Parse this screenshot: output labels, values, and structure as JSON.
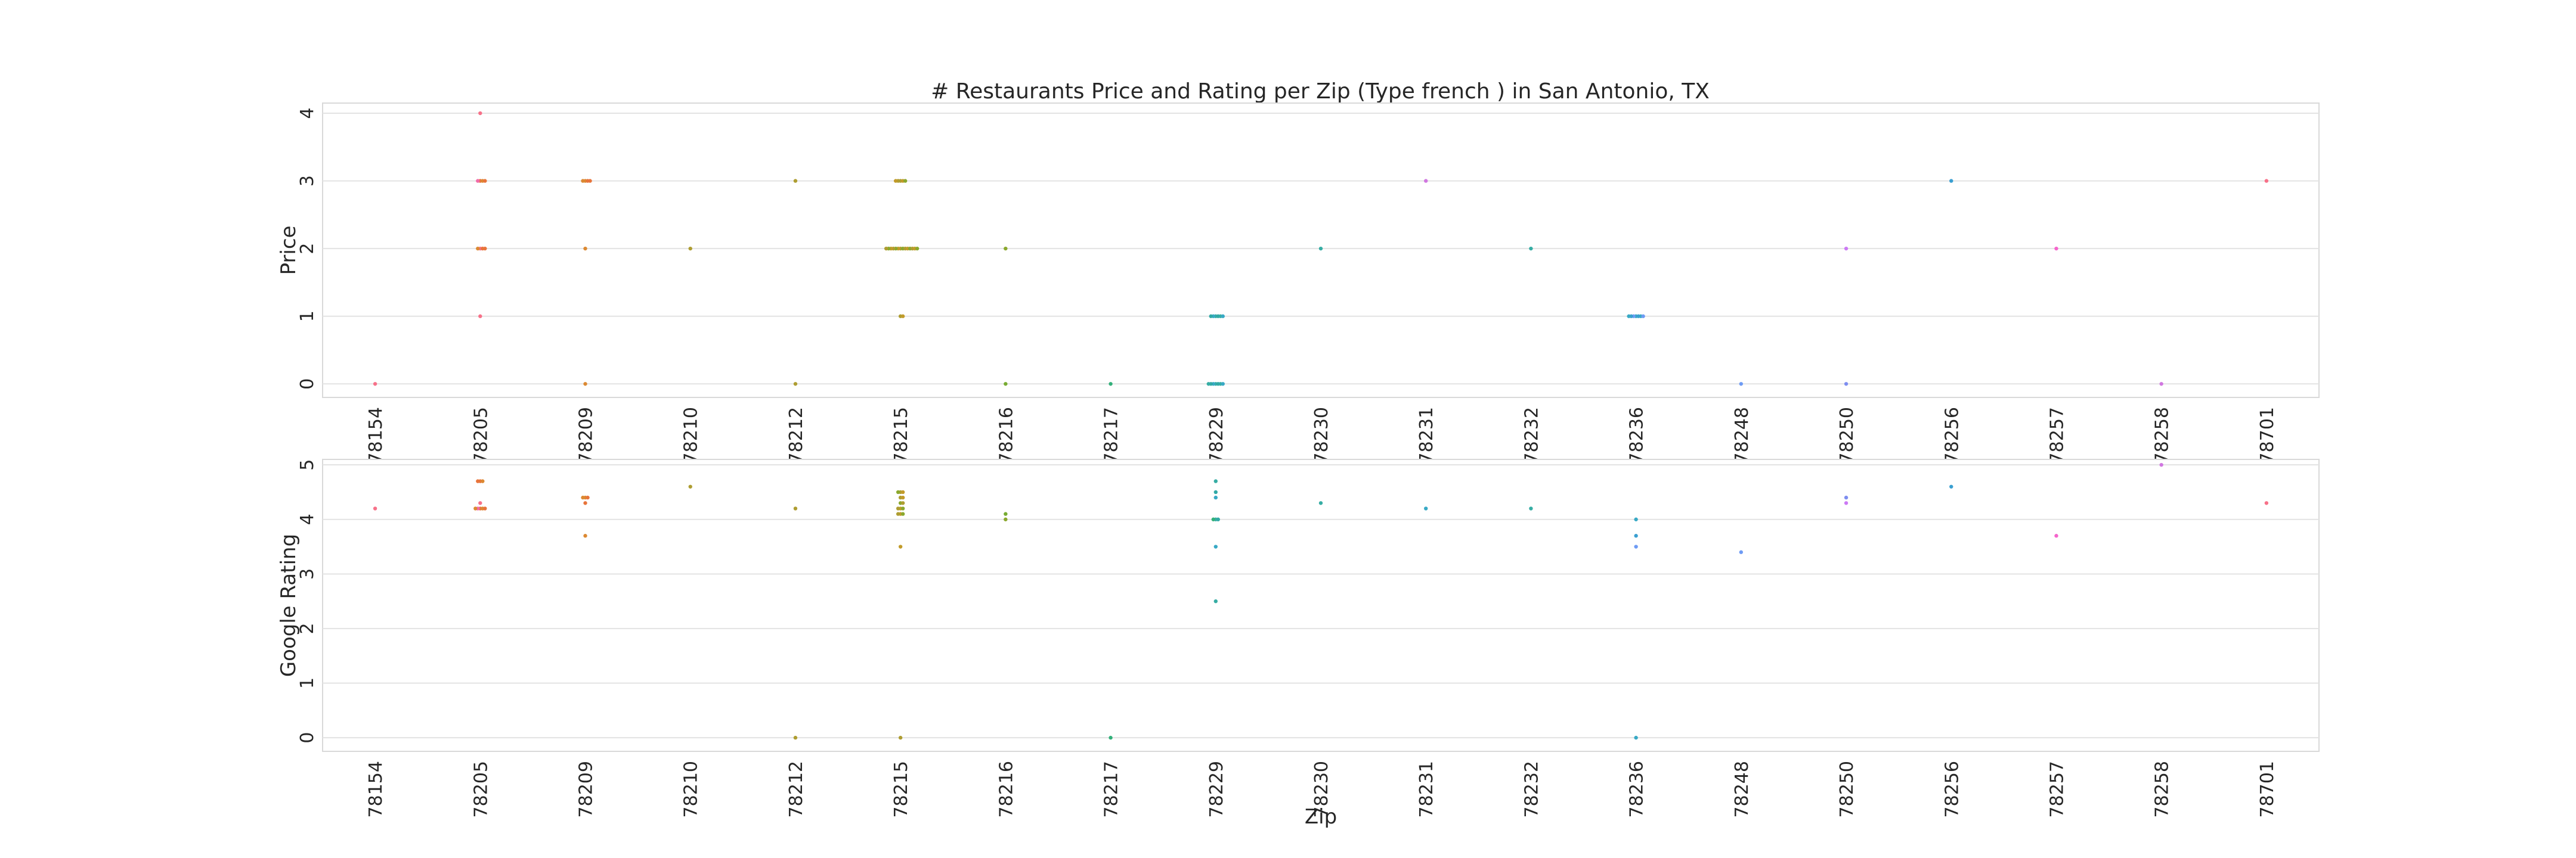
{
  "chart_data": {
    "type": "scatter",
    "title": "# Restaurants Price and Rating per Zip (Type french ) in San Antonio, TX",
    "categories": [
      "78154",
      "78205",
      "78209",
      "78210",
      "78212",
      "78215",
      "78216",
      "78217",
      "78229",
      "78230",
      "78231",
      "78232",
      "78236",
      "78248",
      "78250",
      "78256",
      "78257",
      "78258",
      "78701"
    ],
    "colors": [
      "#f77189",
      "#dc8932",
      "#ae9d31",
      "#77ab31",
      "#33b07a",
      "#36ada4",
      "#38a9c5",
      "#6e9bf4",
      "#cc7af4",
      "#f565cc",
      "#e8743b",
      "#c29b2a",
      "#8aa82d",
      "#4aa96f",
      "#30a9a6",
      "#3a9fd1",
      "#7e8ef0",
      "#d077e0",
      "#f26aa8"
    ],
    "grid": true,
    "panels": [
      {
        "ylabel": "Price",
        "xlabel": "",
        "ylim": [
          -0.2,
          4.15
        ],
        "yticks": [
          "0",
          "1",
          "2",
          "3",
          "4"
        ],
        "points": [
          {
            "cat": "78154",
            "y": 0,
            "color": "#f77189"
          },
          {
            "cat": "78205",
            "y": 4,
            "color": "#f77189"
          },
          {
            "cat": "78205",
            "y": 3,
            "color": "#e8743b"
          },
          {
            "cat": "78205",
            "y": 3,
            "color": "#dc8932"
          },
          {
            "cat": "78205",
            "y": 3,
            "color": "#f26aa8"
          },
          {
            "cat": "78205",
            "y": 3,
            "color": "#e8743b"
          },
          {
            "cat": "78205",
            "y": 2,
            "color": "#f77189"
          },
          {
            "cat": "78205",
            "y": 2,
            "color": "#e8743b"
          },
          {
            "cat": "78205",
            "y": 2,
            "color": "#dc8932"
          },
          {
            "cat": "78205",
            "y": 2,
            "color": "#e8743b"
          },
          {
            "cat": "78205",
            "y": 1,
            "color": "#f77189"
          },
          {
            "cat": "78209",
            "y": 3,
            "color": "#dc8932"
          },
          {
            "cat": "78209",
            "y": 3,
            "color": "#e8743b"
          },
          {
            "cat": "78209",
            "y": 3,
            "color": "#dc8932"
          },
          {
            "cat": "78209",
            "y": 3,
            "color": "#e8743b"
          },
          {
            "cat": "78209",
            "y": 2,
            "color": "#dc8932"
          },
          {
            "cat": "78209",
            "y": 0,
            "color": "#dc8932"
          },
          {
            "cat": "78210",
            "y": 2,
            "color": "#ae9d31"
          },
          {
            "cat": "78212",
            "y": 3,
            "color": "#ae9d31"
          },
          {
            "cat": "78212",
            "y": 0,
            "color": "#ae9d31"
          },
          {
            "cat": "78215",
            "y": 3,
            "color": "#ae9d31"
          },
          {
            "cat": "78215",
            "y": 3,
            "color": "#c29b2a"
          },
          {
            "cat": "78215",
            "y": 3,
            "color": "#ae9d31"
          },
          {
            "cat": "78215",
            "y": 3,
            "color": "#8aa82d"
          },
          {
            "cat": "78215",
            "y": 3,
            "color": "#c29b2a"
          },
          {
            "cat": "78215",
            "y": 2,
            "color": "#ae9d31"
          },
          {
            "cat": "78215",
            "y": 2,
            "color": "#8aa82d"
          },
          {
            "cat": "78215",
            "y": 2,
            "color": "#c29b2a"
          },
          {
            "cat": "78215",
            "y": 2,
            "color": "#ae9d31"
          },
          {
            "cat": "78215",
            "y": 2,
            "color": "#8aa82d"
          },
          {
            "cat": "78215",
            "y": 2,
            "color": "#c29b2a"
          },
          {
            "cat": "78215",
            "y": 2,
            "color": "#ae9d31"
          },
          {
            "cat": "78215",
            "y": 2,
            "color": "#8aa82d"
          },
          {
            "cat": "78215",
            "y": 2,
            "color": "#c29b2a"
          },
          {
            "cat": "78215",
            "y": 2,
            "color": "#ae9d31"
          },
          {
            "cat": "78215",
            "y": 2,
            "color": "#8aa82d"
          },
          {
            "cat": "78215",
            "y": 2,
            "color": "#c29b2a"
          },
          {
            "cat": "78215",
            "y": 2,
            "color": "#ae9d31"
          },
          {
            "cat": "78215",
            "y": 2,
            "color": "#8aa82d"
          },
          {
            "cat": "78215",
            "y": 1,
            "color": "#ae9d31"
          },
          {
            "cat": "78215",
            "y": 1,
            "color": "#c29b2a"
          },
          {
            "cat": "78216",
            "y": 2,
            "color": "#8aa82d"
          },
          {
            "cat": "78216",
            "y": 0,
            "color": "#77ab31"
          },
          {
            "cat": "78217",
            "y": 0,
            "color": "#33b07a"
          },
          {
            "cat": "78229",
            "y": 1,
            "color": "#36ada4"
          },
          {
            "cat": "78229",
            "y": 1,
            "color": "#30a9a6"
          },
          {
            "cat": "78229",
            "y": 1,
            "color": "#38a9c5"
          },
          {
            "cat": "78229",
            "y": 1,
            "color": "#36ada4"
          },
          {
            "cat": "78229",
            "y": 1,
            "color": "#30a9a6"
          },
          {
            "cat": "78229",
            "y": 1,
            "color": "#38a9c5"
          },
          {
            "cat": "78229",
            "y": 0,
            "color": "#36ada4"
          },
          {
            "cat": "78229",
            "y": 0,
            "color": "#30a9a6"
          },
          {
            "cat": "78229",
            "y": 0,
            "color": "#38a9c5"
          },
          {
            "cat": "78229",
            "y": 0,
            "color": "#36ada4"
          },
          {
            "cat": "78229",
            "y": 0,
            "color": "#30a9a6"
          },
          {
            "cat": "78229",
            "y": 0,
            "color": "#38a9c5"
          },
          {
            "cat": "78229",
            "y": 0,
            "color": "#36ada4"
          },
          {
            "cat": "78230",
            "y": 2,
            "color": "#36ada4"
          },
          {
            "cat": "78231",
            "y": 3,
            "color": "#d077e0"
          },
          {
            "cat": "78232",
            "y": 2,
            "color": "#36ada4"
          },
          {
            "cat": "78236",
            "y": 1,
            "color": "#38a9c5"
          },
          {
            "cat": "78236",
            "y": 1,
            "color": "#3a9fd1"
          },
          {
            "cat": "78236",
            "y": 1,
            "color": "#6e9bf4"
          },
          {
            "cat": "78236",
            "y": 1,
            "color": "#38a9c5"
          },
          {
            "cat": "78236",
            "y": 1,
            "color": "#3a9fd1"
          },
          {
            "cat": "78236",
            "y": 1,
            "color": "#6e9bf4"
          },
          {
            "cat": "78236",
            "y": 1,
            "color": "#38a9c5"
          },
          {
            "cat": "78248",
            "y": 0,
            "color": "#6e9bf4"
          },
          {
            "cat": "78250",
            "y": 2,
            "color": "#cc7af4"
          },
          {
            "cat": "78250",
            "y": 0,
            "color": "#7e8ef0"
          },
          {
            "cat": "78256",
            "y": 3,
            "color": "#3a9fd1"
          },
          {
            "cat": "78257",
            "y": 2,
            "color": "#f565cc"
          },
          {
            "cat": "78258",
            "y": 0,
            "color": "#d077e0"
          },
          {
            "cat": "78701",
            "y": 3,
            "color": "#f77189"
          }
        ]
      },
      {
        "ylabel": "Google Rating",
        "xlabel": "Zip",
        "ylim": [
          -0.25,
          5.1
        ],
        "yticks": [
          "0",
          "1",
          "2",
          "3",
          "4",
          "5"
        ],
        "points": [
          {
            "cat": "78154",
            "y": 4.2,
            "color": "#f77189"
          },
          {
            "cat": "78205",
            "y": 4.7,
            "color": "#e8743b"
          },
          {
            "cat": "78205",
            "y": 4.7,
            "color": "#dc8932"
          },
          {
            "cat": "78205",
            "y": 4.7,
            "color": "#e8743b"
          },
          {
            "cat": "78205",
            "y": 4.3,
            "color": "#f77189"
          },
          {
            "cat": "78205",
            "y": 4.2,
            "color": "#e8743b"
          },
          {
            "cat": "78205",
            "y": 4.2,
            "color": "#dc8932"
          },
          {
            "cat": "78205",
            "y": 4.2,
            "color": "#f26aa8"
          },
          {
            "cat": "78205",
            "y": 4.2,
            "color": "#e8743b"
          },
          {
            "cat": "78205",
            "y": 4.2,
            "color": "#dc8932"
          },
          {
            "cat": "78209",
            "y": 4.4,
            "color": "#dc8932"
          },
          {
            "cat": "78209",
            "y": 4.4,
            "color": "#e8743b"
          },
          {
            "cat": "78209",
            "y": 4.4,
            "color": "#dc8932"
          },
          {
            "cat": "78209",
            "y": 4.3,
            "color": "#e8743b"
          },
          {
            "cat": "78209",
            "y": 3.7,
            "color": "#dc8932"
          },
          {
            "cat": "78210",
            "y": 4.6,
            "color": "#ae9d31"
          },
          {
            "cat": "78212",
            "y": 4.2,
            "color": "#ae9d31"
          },
          {
            "cat": "78212",
            "y": 0,
            "color": "#ae9d31"
          },
          {
            "cat": "78215",
            "y": 4.5,
            "color": "#ae9d31"
          },
          {
            "cat": "78215",
            "y": 4.5,
            "color": "#c29b2a"
          },
          {
            "cat": "78215",
            "y": 4.5,
            "color": "#8aa82d"
          },
          {
            "cat": "78215",
            "y": 4.4,
            "color": "#ae9d31"
          },
          {
            "cat": "78215",
            "y": 4.4,
            "color": "#c29b2a"
          },
          {
            "cat": "78215",
            "y": 4.3,
            "color": "#8aa82d"
          },
          {
            "cat": "78215",
            "y": 4.3,
            "color": "#ae9d31"
          },
          {
            "cat": "78215",
            "y": 4.2,
            "color": "#c29b2a"
          },
          {
            "cat": "78215",
            "y": 4.2,
            "color": "#8aa82d"
          },
          {
            "cat": "78215",
            "y": 4.2,
            "color": "#ae9d31"
          },
          {
            "cat": "78215",
            "y": 4.1,
            "color": "#c29b2a"
          },
          {
            "cat": "78215",
            "y": 4.1,
            "color": "#8aa82d"
          },
          {
            "cat": "78215",
            "y": 4.1,
            "color": "#ae9d31"
          },
          {
            "cat": "78215",
            "y": 3.5,
            "color": "#c29b2a"
          },
          {
            "cat": "78215",
            "y": 0,
            "color": "#ae9d31"
          },
          {
            "cat": "78216",
            "y": 4.1,
            "color": "#77ab31"
          },
          {
            "cat": "78216",
            "y": 4.0,
            "color": "#8aa82d"
          },
          {
            "cat": "78217",
            "y": 0,
            "color": "#33b07a"
          },
          {
            "cat": "78229",
            "y": 4.7,
            "color": "#36ada4"
          },
          {
            "cat": "78229",
            "y": 4.5,
            "color": "#30a9a6"
          },
          {
            "cat": "78229",
            "y": 4.4,
            "color": "#38a9c5"
          },
          {
            "cat": "78229",
            "y": 4.0,
            "color": "#36ada4"
          },
          {
            "cat": "78229",
            "y": 4.0,
            "color": "#30a9a6"
          },
          {
            "cat": "78229",
            "y": 4.0,
            "color": "#33b07a"
          },
          {
            "cat": "78229",
            "y": 3.5,
            "color": "#38a9c5"
          },
          {
            "cat": "78229",
            "y": 2.5,
            "color": "#36ada4"
          },
          {
            "cat": "78230",
            "y": 4.3,
            "color": "#36ada4"
          },
          {
            "cat": "78231",
            "y": 4.2,
            "color": "#38a9c5"
          },
          {
            "cat": "78232",
            "y": 4.2,
            "color": "#36ada4"
          },
          {
            "cat": "78236",
            "y": 4.0,
            "color": "#38a9c5"
          },
          {
            "cat": "78236",
            "y": 3.7,
            "color": "#3a9fd1"
          },
          {
            "cat": "78236",
            "y": 3.5,
            "color": "#6e9bf4"
          },
          {
            "cat": "78236",
            "y": 0,
            "color": "#38a9c5"
          },
          {
            "cat": "78248",
            "y": 3.4,
            "color": "#6e9bf4"
          },
          {
            "cat": "78250",
            "y": 4.4,
            "color": "#7e8ef0"
          },
          {
            "cat": "78250",
            "y": 4.3,
            "color": "#cc7af4"
          },
          {
            "cat": "78256",
            "y": 4.6,
            "color": "#3a9fd1"
          },
          {
            "cat": "78257",
            "y": 3.7,
            "color": "#f565cc"
          },
          {
            "cat": "78258",
            "y": 5.0,
            "color": "#d077e0"
          },
          {
            "cat": "78701",
            "y": 4.3,
            "color": "#f77189"
          }
        ]
      }
    ]
  }
}
